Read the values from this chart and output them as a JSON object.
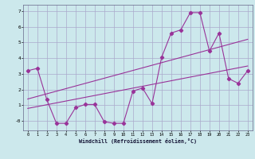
{
  "background_color": "#cce8ec",
  "grid_color": "#aaaacc",
  "line_color": "#993399",
  "xlim": [
    -0.5,
    23.5
  ],
  "ylim": [
    -0.6,
    7.4
  ],
  "xlabel": "Windchill (Refroidissement éolien,°C)",
  "yticks": [
    0,
    1,
    2,
    3,
    4,
    5,
    6,
    7
  ],
  "ytick_labels": [
    "-0",
    "1",
    "2",
    "3",
    "4",
    "5",
    "6",
    "7"
  ],
  "xticks": [
    0,
    1,
    2,
    3,
    4,
    5,
    6,
    7,
    8,
    9,
    10,
    11,
    12,
    13,
    14,
    15,
    16,
    17,
    18,
    19,
    20,
    21,
    22,
    23
  ],
  "line1": {
    "x": [
      0,
      1,
      2,
      3,
      4,
      5,
      6,
      7,
      8,
      9,
      10,
      11,
      12,
      13,
      14,
      15,
      16,
      17,
      18,
      19,
      20,
      21,
      22,
      23
    ],
    "y": [
      3.2,
      3.35,
      1.35,
      -0.15,
      -0.15,
      0.85,
      1.05,
      1.05,
      -0.05,
      -0.15,
      -0.15,
      1.9,
      2.1,
      1.1,
      4.05,
      5.6,
      5.8,
      6.9,
      6.9,
      4.45,
      5.6,
      2.7,
      2.4,
      3.2
    ]
  },
  "line2": {
    "x": [
      0,
      23
    ],
    "y": [
      0.8,
      3.5
    ]
  },
  "line3": {
    "x": [
      0,
      23
    ],
    "y": [
      1.4,
      5.2
    ]
  }
}
